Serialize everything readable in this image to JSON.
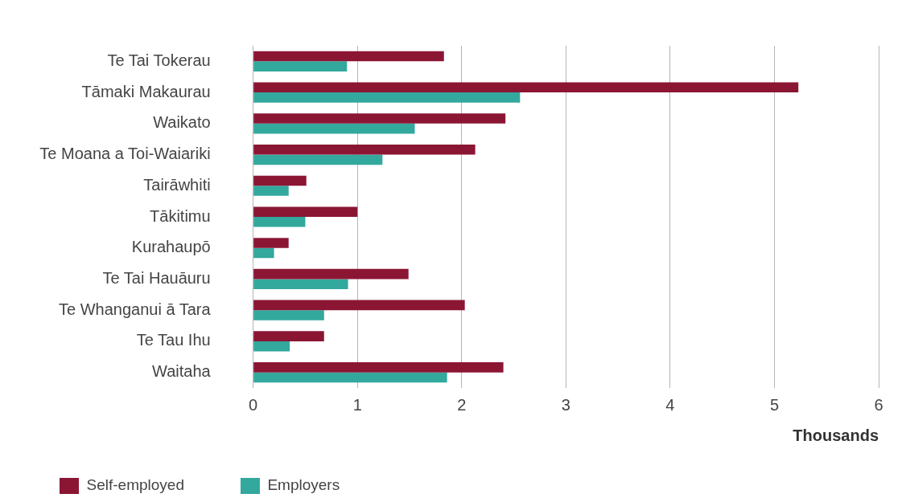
{
  "chart_data": {
    "type": "bar",
    "orientation": "horizontal",
    "xlabel": "Thousands",
    "categories": [
      "Te Tai Tokerau",
      "Tāmaki Makaurau",
      "Waikato",
      "Te Moana a Toi-Waiariki",
      "Tairāwhiti",
      "Tākitimu",
      "Kurahaupō",
      "Te Tai Hauāuru",
      "Te Whanganui ā Tara",
      "Te Tau Ihu",
      "Waitaha"
    ],
    "series": [
      {
        "name": "Self-employed",
        "color": "#8b1634",
        "values": [
          1.83,
          5.23,
          2.42,
          2.13,
          0.51,
          1.0,
          0.34,
          1.49,
          2.03,
          0.68,
          2.4
        ]
      },
      {
        "name": "Employers",
        "color": "#33a89d",
        "values": [
          0.9,
          2.56,
          1.55,
          1.24,
          0.34,
          0.5,
          0.2,
          0.91,
          0.68,
          0.35,
          1.86
        ]
      }
    ],
    "xlim": [
      0,
      6
    ],
    "xticks": [
      0,
      1,
      2,
      3,
      4,
      5,
      6
    ],
    "grid": "x",
    "legend": "bottom left"
  }
}
